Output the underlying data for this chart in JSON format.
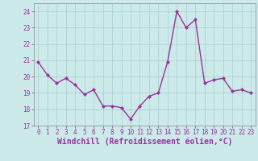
{
  "x": [
    0,
    1,
    2,
    3,
    4,
    5,
    6,
    7,
    8,
    9,
    10,
    11,
    12,
    13,
    14,
    15,
    16,
    17,
    18,
    19,
    20,
    21,
    22,
    23
  ],
  "y": [
    20.9,
    20.1,
    19.6,
    19.9,
    19.5,
    18.9,
    19.2,
    18.2,
    18.2,
    18.1,
    17.4,
    18.2,
    18.8,
    19.0,
    20.9,
    24.0,
    23.0,
    23.5,
    19.6,
    19.8,
    19.9,
    19.1,
    19.2,
    19.0
  ],
  "line_color": "#993399",
  "marker": "D",
  "marker_size": 2.0,
  "background_color": "#cceaea",
  "grid_color": "#aacccc",
  "xlabel": "Windchill (Refroidissement éolien,°C)",
  "ylim": [
    17,
    24.5
  ],
  "xlim": [
    -0.5,
    23.5
  ],
  "yticks": [
    17,
    18,
    19,
    20,
    21,
    22,
    23,
    24
  ],
  "xticks": [
    0,
    1,
    2,
    3,
    4,
    5,
    6,
    7,
    8,
    9,
    10,
    11,
    12,
    13,
    14,
    15,
    16,
    17,
    18,
    19,
    20,
    21,
    22,
    23
  ],
  "tick_color": "#993399",
  "tick_fontsize": 5.5,
  "xlabel_fontsize": 7.0,
  "line_width": 1.0
}
